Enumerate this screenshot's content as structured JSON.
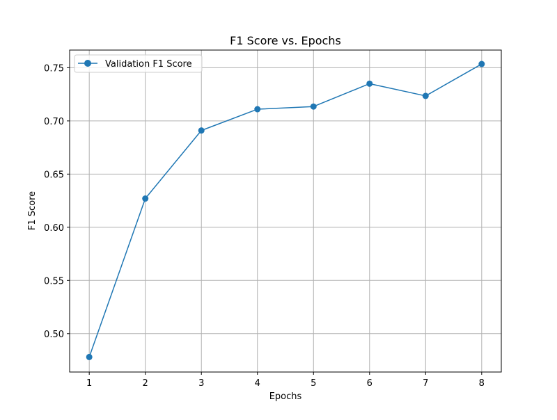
{
  "chart_data": {
    "type": "line",
    "title": "F1 Score vs. Epochs",
    "xlabel": "Epochs",
    "ylabel": "F1 Score",
    "x": [
      1,
      2,
      3,
      4,
      5,
      6,
      7,
      8
    ],
    "x_ticks": [
      "1",
      "2",
      "3",
      "4",
      "5",
      "6",
      "7",
      "8"
    ],
    "y_ticks": [
      "0.50",
      "0.55",
      "0.60",
      "0.65",
      "0.70",
      "0.75"
    ],
    "y_tick_values": [
      0.5,
      0.55,
      0.6,
      0.65,
      0.7,
      0.75
    ],
    "xlim": [
      0.65,
      8.35
    ],
    "ylim": [
      0.4639,
      0.7666
    ],
    "grid": true,
    "legend_position": "top-left",
    "series": [
      {
        "name": "Validation F1 Score",
        "color": "#1f77b4",
        "marker": "circle",
        "values": [
          0.478,
          0.627,
          0.691,
          0.711,
          0.7135,
          0.735,
          0.7235,
          0.7535
        ]
      }
    ]
  }
}
